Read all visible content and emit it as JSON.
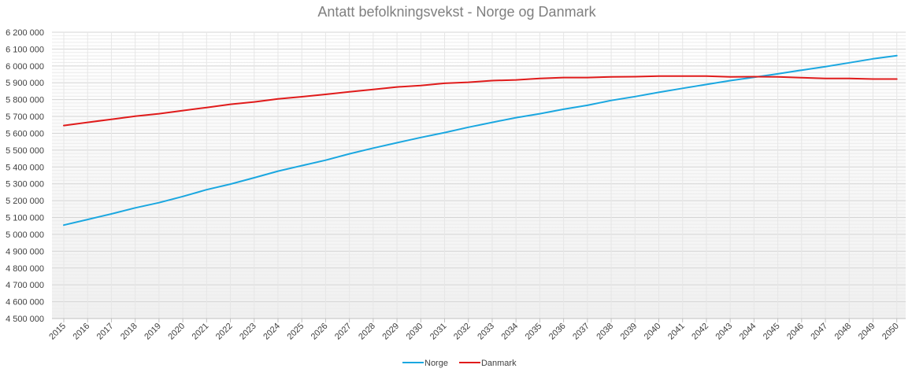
{
  "chart_data": {
    "type": "line",
    "title": "Antatt befolkningsvekst - Norge og Danmark",
    "xlabel": "",
    "ylabel": "",
    "ylim": [
      4500000,
      6200000
    ],
    "ytick_step": 100000,
    "ytick_labels": [
      "4 500 000",
      "4 600 000",
      "4 700 000",
      "4 800 000",
      "4 900 000",
      "5 000 000",
      "5 100 000",
      "5 200 000",
      "5 300 000",
      "5 400 000",
      "5 500 000",
      "5 600 000",
      "5 700 000",
      "5 800 000",
      "5 900 000",
      "6 000 000",
      "6 100 000",
      "6 200 000"
    ],
    "categories": [
      "2015",
      "2016",
      "2017",
      "2018",
      "2019",
      "2020",
      "2021",
      "2022",
      "2023",
      "2024",
      "2025",
      "2026",
      "2027",
      "2028",
      "2029",
      "2030",
      "2031",
      "2032",
      "2033",
      "2034",
      "2035",
      "2036",
      "2037",
      "2038",
      "2039",
      "2040",
      "2041",
      "2042",
      "2043",
      "2044",
      "2045",
      "2046",
      "2047",
      "2048",
      "2049",
      "2050"
    ],
    "grid": true,
    "legend_position": "bottom",
    "series": [
      {
        "name": "Norge",
        "color": "#1aa7e0",
        "values": [
          5055000,
          5088000,
          5121000,
          5157000,
          5188000,
          5225000,
          5265000,
          5298000,
          5336000,
          5375000,
          5408000,
          5440000,
          5478000,
          5512000,
          5544000,
          5575000,
          5604000,
          5636000,
          5665000,
          5693000,
          5716000,
          5743000,
          5766000,
          5795000,
          5818000,
          5843000,
          5867000,
          5890000,
          5913000,
          5933000,
          5953000,
          5975000,
          5996000,
          6019000,
          6042000,
          6061000
        ]
      },
      {
        "name": "Danmark",
        "color": "#e01b1b",
        "values": [
          5646000,
          5665000,
          5683000,
          5701000,
          5716000,
          5735000,
          5753000,
          5772000,
          5786000,
          5804000,
          5817000,
          5831000,
          5846000,
          5860000,
          5875000,
          5884000,
          5897000,
          5903000,
          5913000,
          5917000,
          5926000,
          5931000,
          5931000,
          5935000,
          5936000,
          5940000,
          5940000,
          5940000,
          5935000,
          5936000,
          5935000,
          5930000,
          5926000,
          5926000,
          5922000,
          5922000
        ]
      }
    ]
  }
}
